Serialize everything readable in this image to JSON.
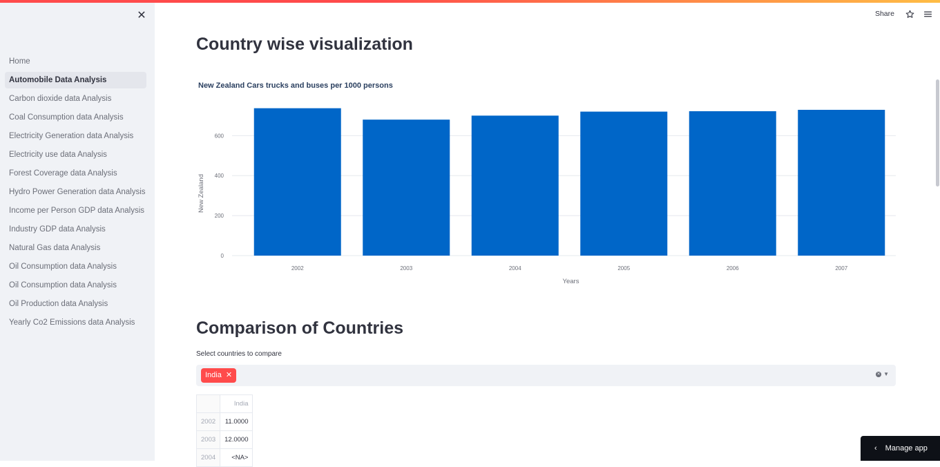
{
  "header": {
    "share_label": "Share",
    "star_icon": "star-icon",
    "menu_icon": "hamburger-menu-icon"
  },
  "sidebar": {
    "close_icon": "close-icon",
    "items": [
      {
        "label": "Home",
        "active": false
      },
      {
        "label": "Automobile Data Analysis",
        "active": true
      },
      {
        "label": "Carbon dioxide data Analysis",
        "active": false
      },
      {
        "label": "Coal Consumption data Analysis",
        "active": false
      },
      {
        "label": "Electricity Generation data Analysis",
        "active": false
      },
      {
        "label": "Electricity use data Analysis",
        "active": false
      },
      {
        "label": "Forest Coverage data Analysis",
        "active": false
      },
      {
        "label": "Hydro Power Generation data Analysis",
        "active": false
      },
      {
        "label": "Income per Person GDP data Analysis",
        "active": false
      },
      {
        "label": "Industry GDP data Analysis",
        "active": false
      },
      {
        "label": "Natural Gas data Analysis",
        "active": false
      },
      {
        "label": "Oil Consumption data Analysis",
        "active": false
      },
      {
        "label": "Oil Consumption data Analysis",
        "active": false
      },
      {
        "label": "Oil Production data Analysis",
        "active": false
      },
      {
        "label": "Yearly Co2 Emissions data Analysis",
        "active": false
      }
    ]
  },
  "main": {
    "title": "Country wise visualization",
    "comparison_title": "Comparison of Countries",
    "select_label": "Select countries to compare",
    "selected_tag": "India",
    "table": {
      "columns": [
        "India"
      ],
      "rows": [
        {
          "index": "2002",
          "value": "11.0000"
        },
        {
          "index": "2003",
          "value": "12.0000"
        },
        {
          "index": "2004",
          "value": "<NA>"
        }
      ]
    }
  },
  "chart_data": {
    "type": "bar",
    "title": "New Zealand Cars trucks and buses per 1000 persons",
    "xlabel": "Years",
    "ylabel": "New Zealand",
    "categories": [
      "2002",
      "2003",
      "2004",
      "2005",
      "2006",
      "2007"
    ],
    "values": [
      737,
      680,
      700,
      720,
      722,
      729
    ],
    "ylim": [
      0,
      760
    ],
    "yticks": [
      0,
      200,
      400,
      600
    ],
    "grid": true,
    "colors": {
      "bar": "#0066c8",
      "grid": "#e5e8ee",
      "tick_text": "#6b6e78"
    }
  },
  "manage_app": {
    "label": "Manage app"
  },
  "colors": {
    "accent": "#ff4b4b",
    "sidebar_bg": "#f0f2f6"
  }
}
